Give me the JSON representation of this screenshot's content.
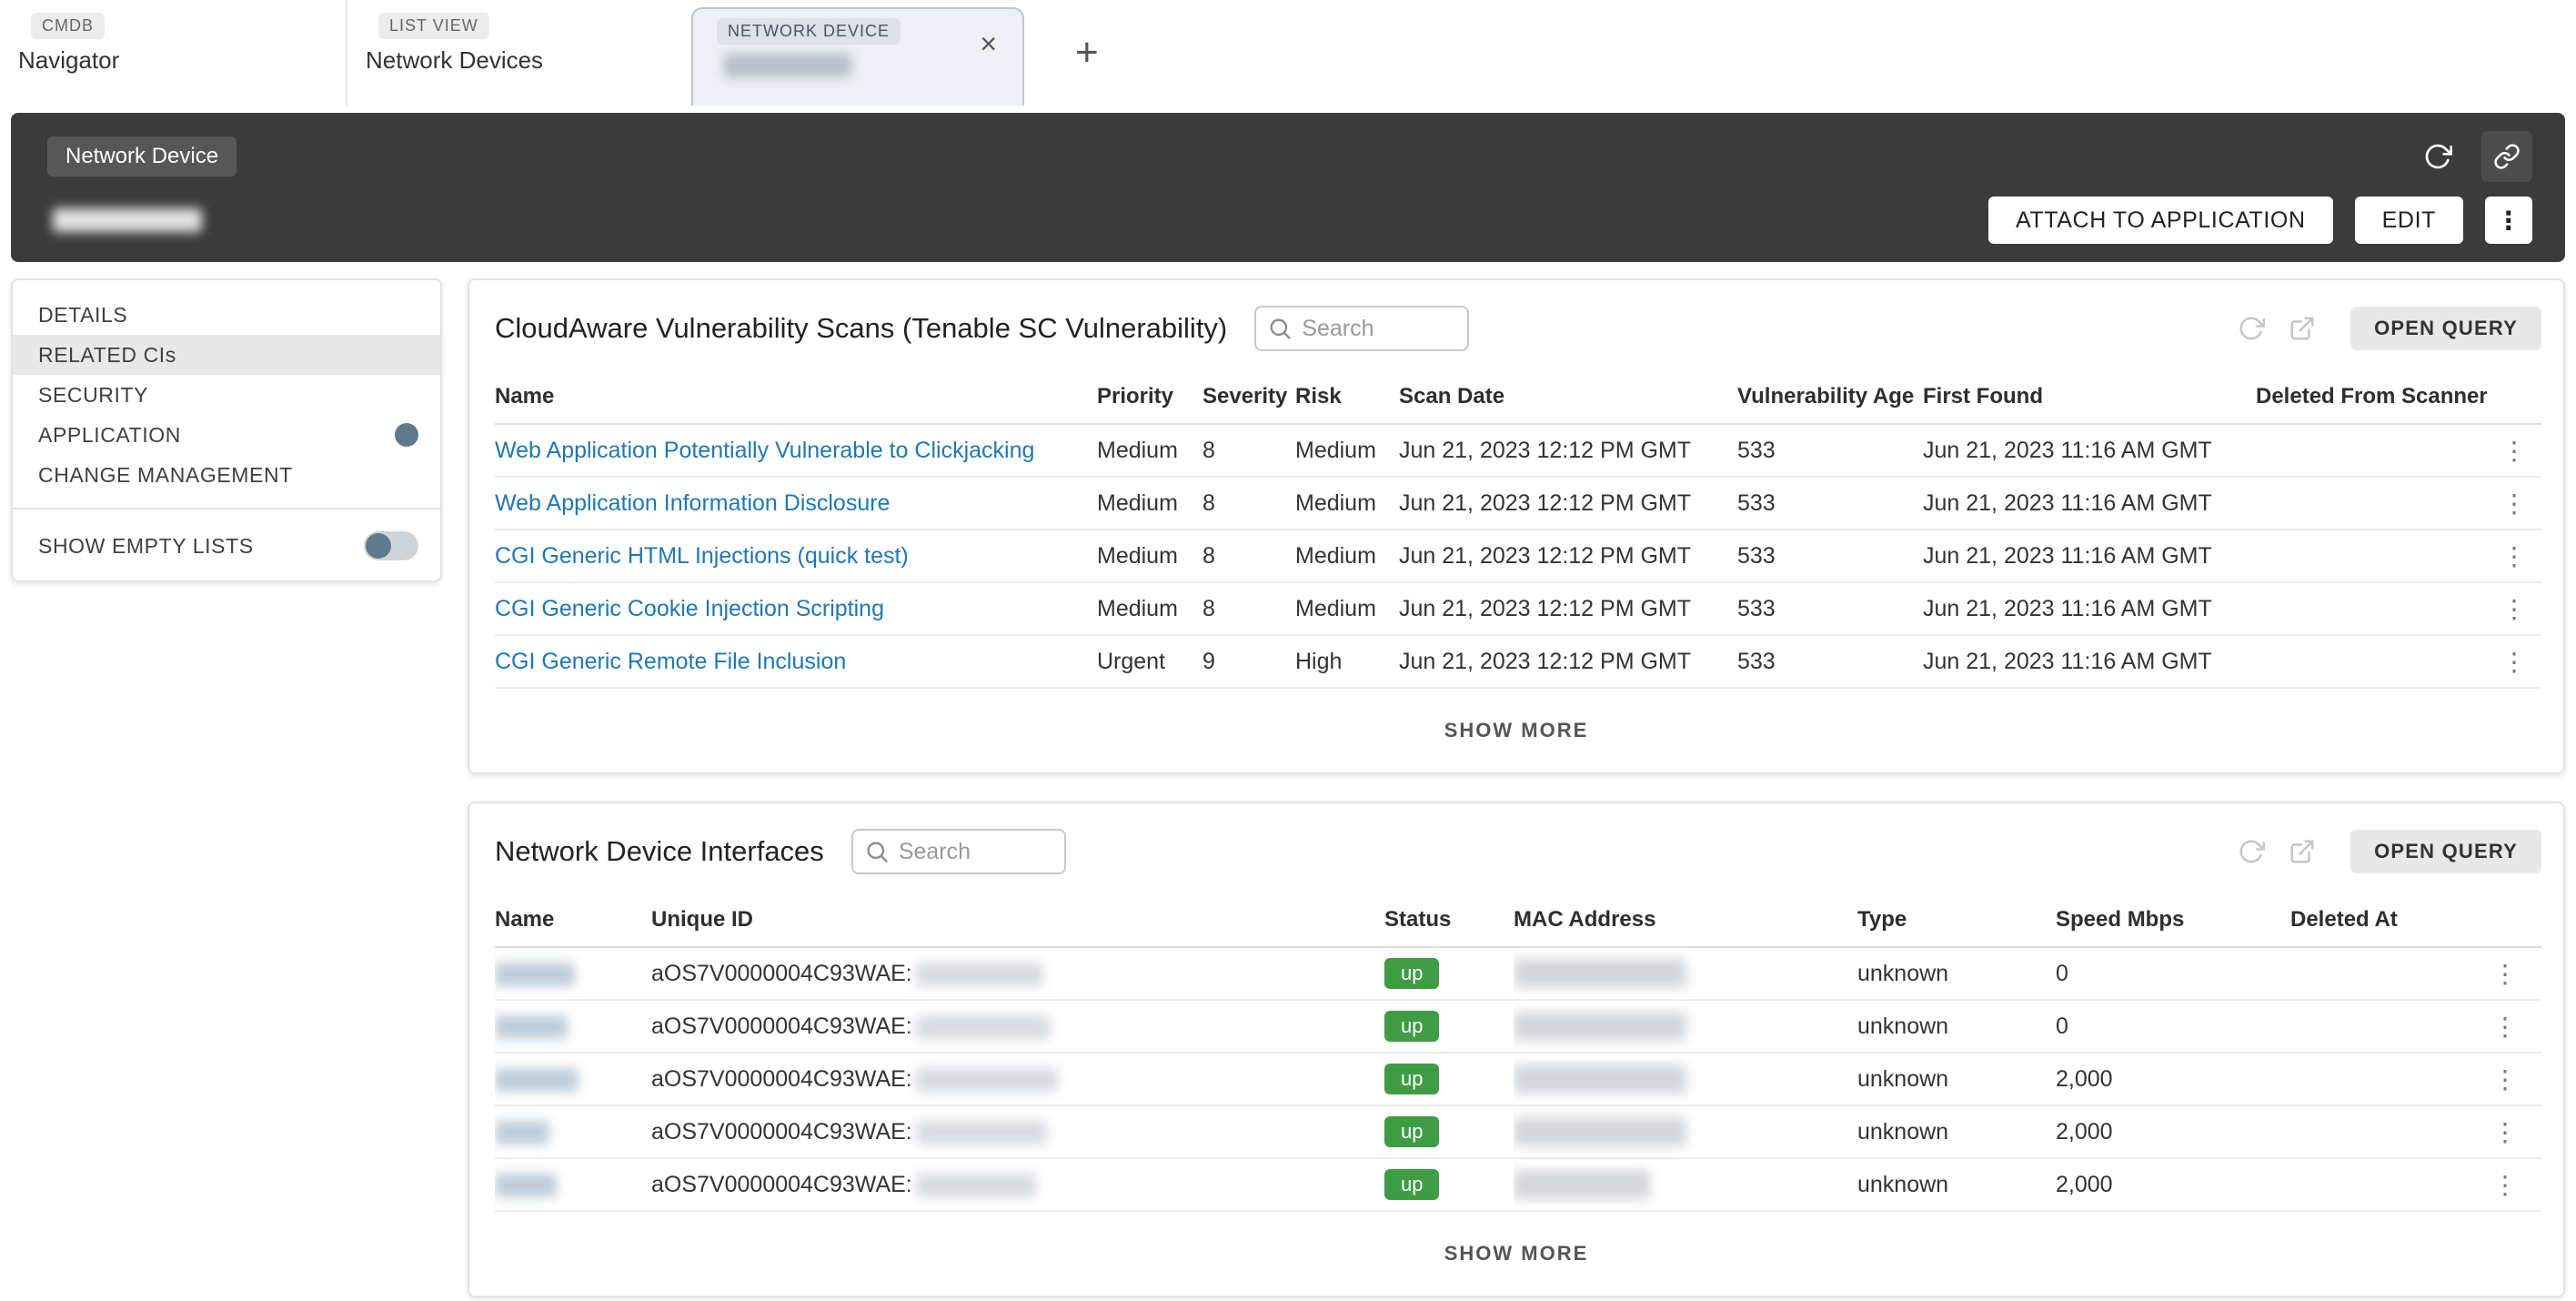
{
  "tabs": {
    "items": [
      {
        "badge": "CMDB",
        "label": "Navigator",
        "active": false
      },
      {
        "badge": "LIST VIEW",
        "label": "Network Devices",
        "active": false
      },
      {
        "badge": "NETWORK DEVICE",
        "label": "",
        "redacted": true,
        "active": true,
        "closable": true
      }
    ]
  },
  "header": {
    "type_chip": "Network Device",
    "title_redacted": true,
    "attach_label": "ATTACH TO APPLICATION",
    "edit_label": "EDIT"
  },
  "sidebar": {
    "items": [
      {
        "label": "DETAILS",
        "active": false,
        "badge_dot": false
      },
      {
        "label": "RELATED CIs",
        "active": true,
        "badge_dot": false
      },
      {
        "label": "SECURITY",
        "active": false,
        "badge_dot": false
      },
      {
        "label": "APPLICATION",
        "active": false,
        "badge_dot": true
      },
      {
        "label": "CHANGE MANAGEMENT",
        "active": false,
        "badge_dot": false
      }
    ],
    "show_empty_lists": {
      "label": "SHOW EMPTY LISTS",
      "enabled": false
    }
  },
  "vulnerability_card": {
    "title": "CloudAware Vulnerability Scans (Tenable SC Vulnerability)",
    "search_placeholder": "Search",
    "open_query_label": "OPEN QUERY",
    "show_more_label": "SHOW MORE",
    "columns": [
      "Name",
      "Priority",
      "Severity",
      "Risk",
      "Scan Date",
      "Vulnerability Age",
      "First Found",
      "Deleted From Scanner"
    ],
    "rows": [
      {
        "name": "Web Application Potentially Vulnerable to Clickjacking",
        "priority": "Medium",
        "severity": "8",
        "risk": "Medium",
        "scan_date": "Jun 21, 2023 12:12 PM GMT",
        "vulnerability_age": "533",
        "first_found": "Jun 21, 2023 11:16 AM GMT",
        "deleted_from_scanner": ""
      },
      {
        "name": "Web Application Information Disclosure",
        "priority": "Medium",
        "severity": "8",
        "risk": "Medium",
        "scan_date": "Jun 21, 2023 12:12 PM GMT",
        "vulnerability_age": "533",
        "first_found": "Jun 21, 2023 11:16 AM GMT",
        "deleted_from_scanner": ""
      },
      {
        "name": "CGI Generic HTML Injections (quick test)",
        "priority": "Medium",
        "severity": "8",
        "risk": "Medium",
        "scan_date": "Jun 21, 2023 12:12 PM GMT",
        "vulnerability_age": "533",
        "first_found": "Jun 21, 2023 11:16 AM GMT",
        "deleted_from_scanner": ""
      },
      {
        "name": "CGI Generic Cookie Injection Scripting",
        "priority": "Medium",
        "severity": "8",
        "risk": "Medium",
        "scan_date": "Jun 21, 2023 12:12 PM GMT",
        "vulnerability_age": "533",
        "first_found": "Jun 21, 2023 11:16 AM GMT",
        "deleted_from_scanner": ""
      },
      {
        "name": "CGI Generic Remote File Inclusion",
        "priority": "Urgent",
        "severity": "9",
        "risk": "High",
        "scan_date": "Jun 21, 2023 12:12 PM GMT",
        "vulnerability_age": "533",
        "first_found": "Jun 21, 2023 11:16 AM GMT",
        "deleted_from_scanner": ""
      }
    ]
  },
  "interfaces_card": {
    "title": "Network Device Interfaces",
    "search_placeholder": "Search",
    "open_query_label": "OPEN QUERY",
    "show_more_label": "SHOW MORE",
    "columns": [
      "Name",
      "Unique ID",
      "Status",
      "MAC Address",
      "Type",
      "Speed Mbps",
      "Deleted At"
    ],
    "unique_id_prefix": "aOS7V0000004C93WAE:",
    "rows": [
      {
        "name_redacted": true,
        "unique_id_suffix_redacted": true,
        "status": "up",
        "mac_redacted": true,
        "type": "unknown",
        "speed_mbps": "0",
        "deleted_at": ""
      },
      {
        "name_redacted": true,
        "unique_id_suffix_redacted": true,
        "status": "up",
        "mac_redacted": true,
        "type": "unknown",
        "speed_mbps": "0",
        "deleted_at": ""
      },
      {
        "name_redacted": true,
        "unique_id_suffix_redacted": true,
        "status": "up",
        "mac_redacted": true,
        "type": "unknown",
        "speed_mbps": "2,000",
        "deleted_at": ""
      },
      {
        "name_redacted": true,
        "unique_id_suffix_redacted": true,
        "status": "up",
        "mac_redacted": true,
        "type": "unknown",
        "speed_mbps": "2,000",
        "deleted_at": ""
      },
      {
        "name_redacted": true,
        "unique_id_suffix_redacted": true,
        "status": "up",
        "mac_redacted": true,
        "type": "unknown",
        "speed_mbps": "2,000",
        "deleted_at": ""
      }
    ]
  },
  "colors": {
    "link": "#2077b4",
    "status_up": "#3f9c44",
    "header_bg": "#3b3b3b",
    "sidebar_badge": "#5d7b8d"
  }
}
